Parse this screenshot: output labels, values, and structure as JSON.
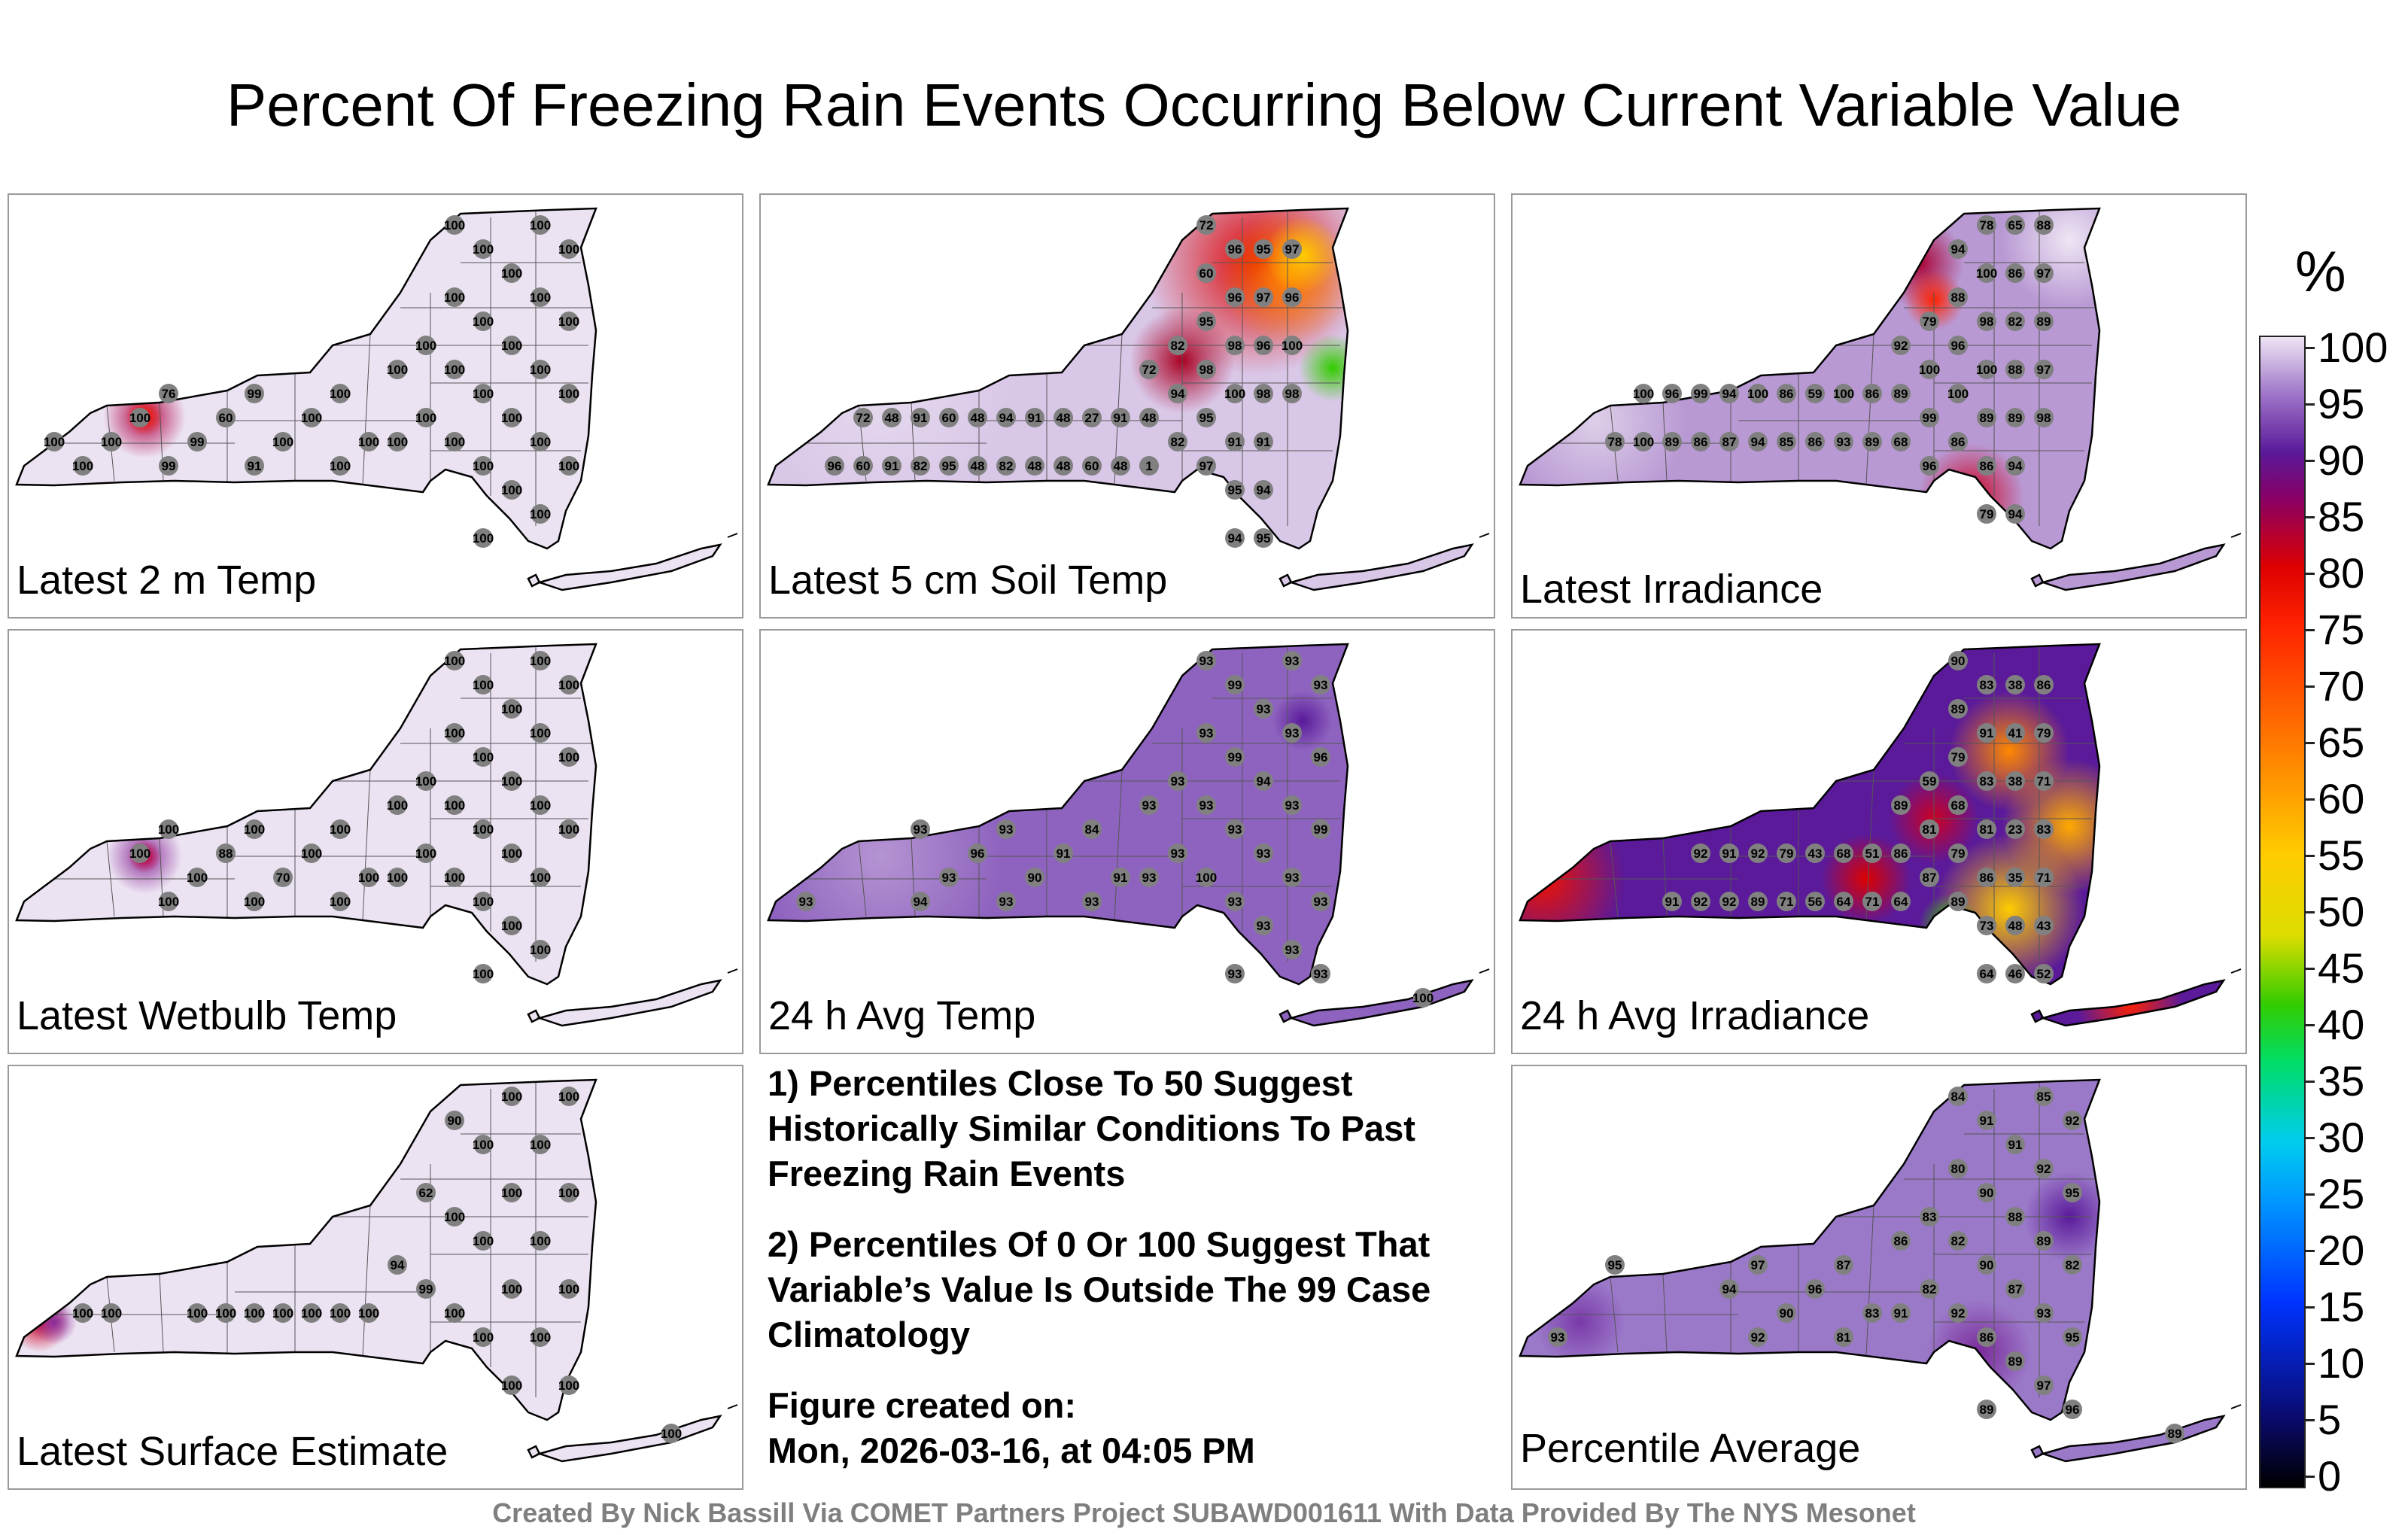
{
  "title": "Percent Of Freezing Rain Events Occurring Below Current Variable Value",
  "panels": [
    {
      "label": "Latest 2 m Temp"
    },
    {
      "label": "Latest 5 cm Soil Temp"
    },
    {
      "label": "Latest Irradiance"
    },
    {
      "label": "Latest Wetbulb Temp"
    },
    {
      "label": "24 h Avg Temp"
    },
    {
      "label": "24 h Avg Irradiance"
    },
    {
      "label": "Latest Surface Estimate"
    },
    {
      "label": "Percentile Average"
    }
  ],
  "notes": {
    "note1": "1) Percentiles Close To 50 Suggest Historically Similar Conditions To Past Freezing Rain Events",
    "note2": "2) Percentiles Of 0 Or 100 Suggest That Variable’s Value Is Outside The 99 Case Climatology",
    "created_label": "Figure created on:",
    "created_value": "Mon, 2026-03-16, at 04:05 PM"
  },
  "colorbar": {
    "unit": "%",
    "ticks": [
      "0",
      "5",
      "10",
      "15",
      "20",
      "25",
      "30",
      "35",
      "40",
      "45",
      "50",
      "55",
      "60",
      "65",
      "70",
      "75",
      "80",
      "85",
      "90",
      "95",
      "100"
    ]
  },
  "credit": "Created By Nick Bassill Via COMET Partners Project SUBAWD001611 With Data Provided By The NYS Mesonet",
  "colors": {
    "outline": "#000000",
    "marker": "#808080",
    "panel_border": "#9a9a9a"
  },
  "icons": {
    "map": "new-york-state-map",
    "marker": "station-marker"
  },
  "station_values": {
    "latest_2m_temp": [
      "100",
      "100",
      "100",
      "100",
      "76",
      "99",
      "99",
      "60",
      "99",
      "91",
      "100",
      "100",
      "100",
      "100",
      "100",
      "100",
      "100",
      "100",
      "100",
      "100",
      "100",
      "100",
      "100",
      "100",
      "100",
      "100",
      "100",
      "100",
      "100",
      "100",
      "100",
      "100",
      "100",
      "100",
      "100",
      "100",
      "100",
      "100",
      "100",
      "100",
      "100"
    ],
    "latest_5cm_soil_temp": [
      "96",
      "72",
      "60",
      "48",
      "91",
      "91",
      "82",
      "60",
      "95",
      "48",
      "48",
      "94",
      "82",
      "91",
      "48",
      "48",
      "48",
      "27",
      "60",
      "91",
      "48",
      "72",
      "48",
      "1",
      "82",
      "94",
      "82",
      "72",
      "60",
      "95",
      "98",
      "95",
      "97",
      "96",
      "96",
      "98",
      "100",
      "91",
      "95",
      "94",
      "95",
      "97",
      "96",
      "98",
      "91",
      "94",
      "95",
      "97",
      "96",
      "100",
      "98"
    ],
    "latest_irradiance": [
      "78",
      "100",
      "100",
      "96",
      "89",
      "99",
      "86",
      "94",
      "87",
      "100",
      "94",
      "86",
      "85",
      "59",
      "86",
      "100",
      "93",
      "86",
      "89",
      "92",
      "89",
      "68",
      "79",
      "100",
      "99",
      "96",
      "94",
      "88",
      "96",
      "100",
      "86",
      "78",
      "100",
      "98",
      "100",
      "89",
      "86",
      "79",
      "65",
      "86",
      "82",
      "88",
      "89",
      "94",
      "94",
      "88",
      "97",
      "89",
      "97",
      "98"
    ],
    "latest_wetbulb_temp": [
      "100",
      "100",
      "100",
      "100",
      "88",
      "100",
      "100",
      "70",
      "100",
      "100",
      "100",
      "100",
      "100",
      "100",
      "100",
      "100",
      "100",
      "100",
      "100",
      "100",
      "100",
      "100",
      "100",
      "100",
      "100",
      "100",
      "100",
      "100",
      "100",
      "100",
      "100",
      "100",
      "100",
      "100",
      "100",
      "100",
      "100"
    ],
    "avg24_temp": [
      "93",
      "94",
      "93",
      "96",
      "93",
      "93",
      "90",
      "91",
      "84",
      "93",
      "91",
      "93",
      "93",
      "93",
      "93",
      "93",
      "93",
      "93",
      "100",
      "99",
      "99",
      "93",
      "93",
      "93",
      "93",
      "94",
      "93",
      "93",
      "93",
      "93",
      "93",
      "93",
      "93",
      "93",
      "96",
      "99",
      "93",
      "93",
      "100",
      "93"
    ],
    "avg24_irradiance": [
      "91",
      "92",
      "92",
      "91",
      "92",
      "92",
      "89",
      "79",
      "71",
      "43",
      "56",
      "68",
      "64",
      "51",
      "71",
      "89",
      "86",
      "64",
      "59",
      "81",
      "87",
      "90",
      "89",
      "79",
      "68",
      "79",
      "89",
      "83",
      "91",
      "83",
      "81",
      "86",
      "73",
      "64",
      "38",
      "41",
      "38",
      "23",
      "35",
      "48",
      "46",
      "86",
      "79",
      "71",
      "83",
      "71",
      "43",
      "52"
    ],
    "latest_surface_estimate": [
      "100",
      "100",
      "100",
      "100",
      "100",
      "100",
      "100",
      "94",
      "62",
      "99",
      "90",
      "100",
      "100",
      "100",
      "100",
      "100",
      "100",
      "100",
      "100",
      "100",
      "100",
      "100",
      "100",
      "100",
      "100",
      "100",
      "100",
      "100",
      "100",
      "100"
    ],
    "percentile_average": [
      "94",
      "97",
      "92",
      "90",
      "96",
      "87",
      "81",
      "83",
      "86",
      "91",
      "83",
      "82",
      "84",
      "80",
      "82",
      "92",
      "91",
      "90",
      "90",
      "86",
      "89",
      "91",
      "88",
      "87",
      "89",
      "85",
      "92",
      "89",
      "93",
      "97",
      "92",
      "95",
      "82",
      "95",
      "96",
      "89",
      "93",
      "95"
    ]
  }
}
